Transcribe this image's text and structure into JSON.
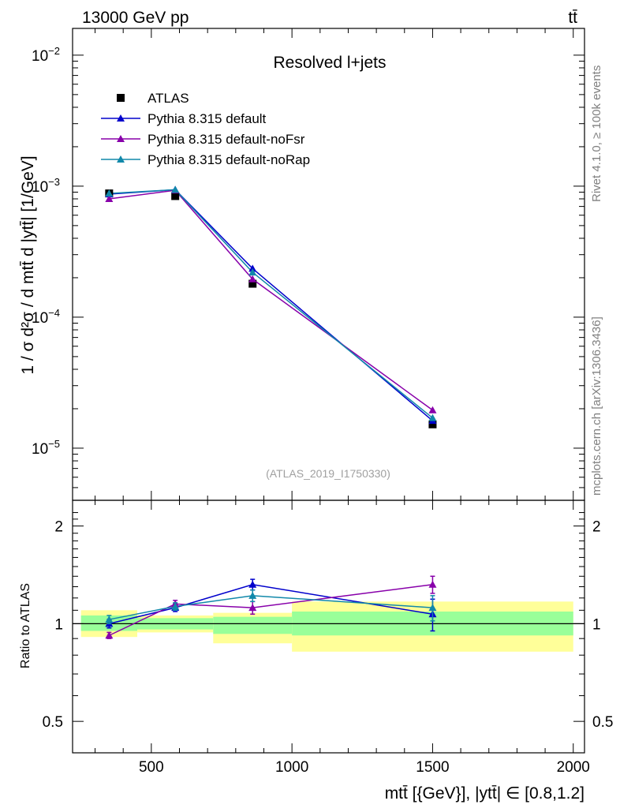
{
  "chart_data": {
    "type": "line",
    "header_left": "13000 GeV pp",
    "header_right": "tt̄",
    "title": "Resolved l+jets",
    "analysis_tag": "(ATLAS_2019_I1750330)",
    "side_label_top": "Rivet 4.1.0, ≥ 100k events",
    "side_label_bottom": "mcplots.cern.ch [arXiv:1306.3436]",
    "ylabel_main": "1 / σ d²σ / d mtt̄ d |ytt̄| [1/GeV]",
    "ylabel_ratio": "Ratio to ATLAS",
    "xlabel": "mtt̄ [{GeV}], |ytt̄| ∈ [0.8,1.2]",
    "xlim": [
      220,
      2040
    ],
    "ylim_main": [
      4e-06,
      0.016
    ],
    "ylim_ratio": [
      0.4,
      2.4
    ],
    "x_ticks": [
      {
        "value": 500,
        "label": "500"
      },
      {
        "value": 1000,
        "label": "1000"
      },
      {
        "value": 1500,
        "label": "1500"
      },
      {
        "value": 2000,
        "label": "2000"
      }
    ],
    "y_ticks_main": [
      {
        "value": 1e-05,
        "base": "10",
        "exp": "−5"
      },
      {
        "value": 0.0001,
        "base": "10",
        "exp": "−4"
      },
      {
        "value": 0.001,
        "base": "10",
        "exp": "−3"
      },
      {
        "value": 0.01,
        "base": "10",
        "exp": "−2"
      }
    ],
    "y_ticks_ratio": [
      {
        "value": 0.5,
        "label": "0.5"
      },
      {
        "value": 1,
        "label": "1"
      },
      {
        "value": 2,
        "label": "2"
      }
    ],
    "bins": [
      {
        "lo": 250,
        "hi": 450,
        "center": 350
      },
      {
        "lo": 450,
        "hi": 720,
        "center": 585
      },
      {
        "lo": 720,
        "hi": 1000,
        "center": 860
      },
      {
        "lo": 1000,
        "hi": 2000,
        "center": 1500
      }
    ],
    "data": {
      "name": "ATLAS",
      "color": "#000000",
      "values": [
        0.00088,
        0.00084,
        0.00018,
        1.52e-05
      ],
      "band_stat": [
        [
          0.95,
          1.06
        ],
        [
          0.96,
          1.04
        ],
        [
          0.93,
          1.05
        ],
        [
          0.92,
          1.09
        ]
      ],
      "band_total": [
        [
          0.91,
          1.1
        ],
        [
          0.94,
          1.06
        ],
        [
          0.87,
          1.08
        ],
        [
          0.82,
          1.17
        ]
      ]
    },
    "series": [
      {
        "name": "Pythia 8.315 default",
        "color": "#0000cc",
        "values": [
          0.00087,
          0.00094,
          0.000235,
          1.62e-05
        ],
        "ratio": [
          1.0,
          1.12,
          1.32,
          1.07
        ],
        "ratio_err": [
          0.03,
          0.03,
          0.05,
          0.12
        ]
      },
      {
        "name": "Pythia 8.315 default-noFsr",
        "color": "#8800aa",
        "values": [
          0.0008,
          0.00093,
          0.000195,
          1.95e-05
        ],
        "ratio": [
          0.92,
          1.15,
          1.12,
          1.32
        ],
        "ratio_err": [
          0.02,
          0.03,
          0.05,
          0.08
        ]
      },
      {
        "name": "Pythia 8.315 default-noRap",
        "color": "#1188aa",
        "values": [
          0.00088,
          0.00094,
          0.00022,
          1.7e-05
        ],
        "ratio": [
          1.03,
          1.13,
          1.22,
          1.12
        ],
        "ratio_err": [
          0.03,
          0.03,
          0.05,
          0.1
        ]
      }
    ]
  }
}
